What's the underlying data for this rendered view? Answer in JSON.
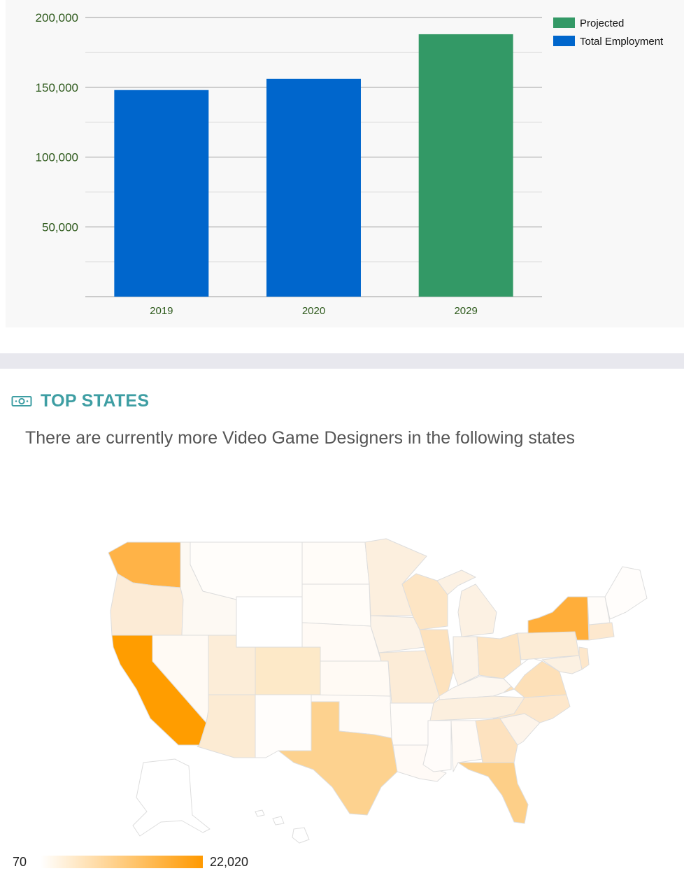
{
  "chart_data": {
    "type": "bar",
    "categories": [
      "2019",
      "2020",
      "2029"
    ],
    "series": [
      {
        "name": "Total Employment",
        "values": [
          148000,
          156000,
          null
        ],
        "color": "#0066cc"
      },
      {
        "name": "Projected",
        "values": [
          null,
          null,
          188000
        ],
        "color": "#339966"
      }
    ],
    "ylim": [
      0,
      200000
    ],
    "yticks": [
      "50,000",
      "100,000",
      "150,000",
      "200,000"
    ],
    "ytick_values": [
      50000,
      100000,
      150000,
      200000
    ],
    "minor_gridlines": [
      25000,
      75000,
      125000,
      175000
    ],
    "grid": true,
    "legend_position": "top-right",
    "legend": [
      "Projected",
      "Total Employment"
    ],
    "title": "",
    "xlabel": "",
    "ylabel": ""
  },
  "section": {
    "icon": "money-icon",
    "title": "TOP STATES",
    "subtitle": "There are currently more Video Game Designers in the following states"
  },
  "map": {
    "legend_min": "70",
    "legend_max": "22,020",
    "color_low": "#ffffff",
    "color_high": "#ff9900"
  },
  "colors": {
    "axis_text": "#2e5a1c",
    "accent": "#3e9ea3",
    "grid_major": "#9e9e9e",
    "grid_minor": "#d6d6d6"
  }
}
